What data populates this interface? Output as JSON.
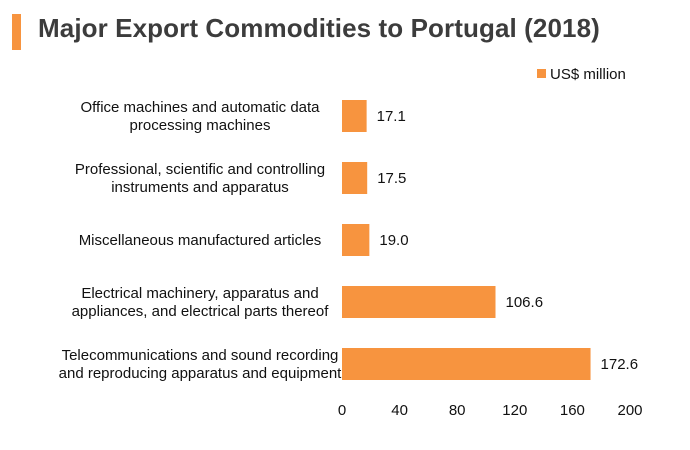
{
  "title": "Major Export Commodities to Portugal (2018)",
  "colors": {
    "accent": "#f7943f",
    "bar": "#f7943f"
  },
  "chart_data": {
    "type": "bar",
    "orientation": "horizontal",
    "categories": [
      [
        "Office machines and automatic data",
        "processing machines"
      ],
      [
        "Professional, scientific and controlling",
        "instruments and apparatus"
      ],
      [
        "Miscellaneous manufactured articles"
      ],
      [
        "Electrical machinery, apparatus and",
        "appliances, and electrical parts thereof"
      ],
      [
        "Telecommunications and sound recording",
        "and reproducing apparatus and equipment"
      ]
    ],
    "series": [
      {
        "name": "US$ million",
        "values": [
          17.1,
          17.5,
          19.0,
          106.6,
          172.6
        ],
        "value_labels": [
          "17.1",
          "17.5",
          "19.0",
          "106.6",
          "172.6"
        ]
      }
    ],
    "xlim": [
      0,
      200
    ],
    "xticks": [
      0,
      40,
      80,
      120,
      160,
      200
    ],
    "grid": false,
    "legend": "top-right"
  }
}
